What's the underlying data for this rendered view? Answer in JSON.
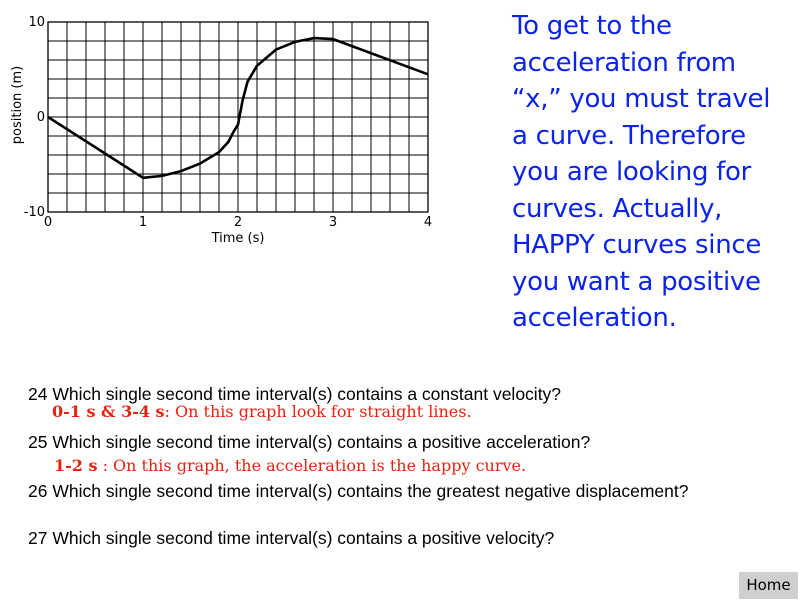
{
  "chart_data": {
    "type": "line",
    "xlabel": "Time (s)",
    "ylabel": "position (m)",
    "xlim": [
      0,
      4
    ],
    "ylim": [
      -10,
      10
    ],
    "x_tick_labels": [
      "0",
      "1",
      "2",
      "3",
      "4"
    ],
    "y_tick_labels": [
      "10",
      "0",
      "-10"
    ],
    "grid": true,
    "series": [
      {
        "x": [
          0,
          1,
          1.2,
          1.4,
          1.6,
          1.8,
          1.9,
          1.95,
          2.0,
          2.05,
          2.1,
          2.2,
          2.4,
          2.6,
          2.8,
          3.0,
          4.0
        ],
        "y": [
          0,
          -6.4,
          -6.2,
          -5.7,
          -4.9,
          -3.7,
          -2.6,
          -1.6,
          -0.8,
          1.8,
          3.7,
          5.4,
          7.1,
          7.9,
          8.3,
          8.2,
          4.5
        ]
      }
    ]
  },
  "side_text": "To get to the acceleration from “x,” you must travel a curve. Therefore you are looking for curves. Actually, HAPPY curves since you want  a positive acceleration.",
  "questions": {
    "q24": "24 Which single second time interval(s) contains a constant velocity?",
    "a24_bold": "0-1 s & 3-4 s",
    "a24_text": ": On this graph look for straight lines.",
    "q25": "25 Which single second time interval(s) contains a positive acceleration?",
    "a25_bold": "1-2 s",
    "a25_text": " : On this graph, the acceleration is the happy curve.",
    "q26": "26 Which single second time interval(s) contains the greatest negative displacement?",
    "q27": "27 Which single second time interval(s) contains a positive velocity?"
  },
  "home_label": "Home"
}
